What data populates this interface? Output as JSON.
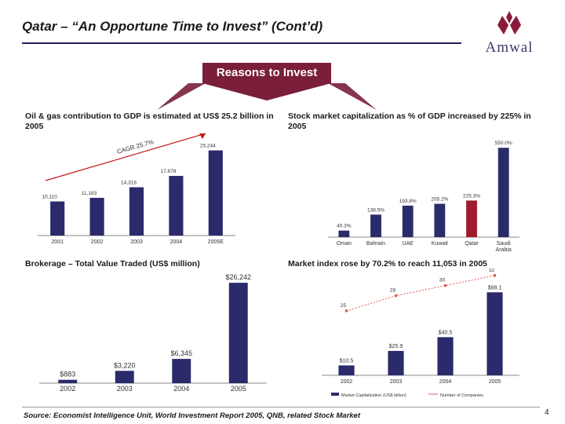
{
  "title": "Qatar – “An Opportune Time to Invest” (Cont’d)",
  "logo": {
    "text": "Amwal"
  },
  "banner": {
    "label": "Reasons to Invest"
  },
  "panels": {
    "gdp": {
      "label": "Oil & gas contribution to GDP is estimated at US$ 25.2 billion in 2005",
      "cagr": "CAGR 25.7%"
    },
    "mcap": {
      "label": "Stock market capitalization as % of GDP increased by 225% in 2005"
    },
    "brokerage": {
      "label": "Brokerage – Total Value Traded (US$ million)"
    },
    "index": {
      "label": "Market index rose by 70.2% to reach 11,053 in 2005"
    }
  },
  "source": "Source: Economist Intelligence Unit, World Investment Report 2005, QNB, related Stock Market",
  "page_number": "4",
  "colors": {
    "bar": "#2b2a6b",
    "highlight": "#9e1b2d",
    "banner": "#7a1e3a",
    "line": "#e05a5a"
  },
  "chart_data": [
    {
      "type": "bar",
      "categories": [
        "2001",
        "2002",
        "2003",
        "2004",
        "2005E"
      ],
      "values": [
        10110,
        11183,
        14318,
        17678,
        25244
      ],
      "labels": [
        "10,110",
        "11,183",
        "14,318",
        "17,678",
        "25,244"
      ],
      "ylim": [
        0,
        27000
      ]
    },
    {
      "type": "bar",
      "categories": [
        "Oman",
        "Bahrain",
        "UAE",
        "Kuwait",
        "Qatar",
        "Saudi Arabia"
      ],
      "values": [
        40.3,
        138.5,
        193.8,
        205.2,
        225.3,
        550.0
      ],
      "labels": [
        "40.3%",
        "138.5%",
        "193.8%",
        "205.2%",
        "225.3%",
        "550.0%"
      ],
      "highlight": "Qatar",
      "ylim": [
        0,
        580
      ]
    },
    {
      "type": "bar",
      "categories": [
        "2002",
        "2003",
        "2004",
        "2005"
      ],
      "values": [
        883,
        3220,
        6345,
        26242
      ],
      "labels": [
        "$883",
        "$3,220",
        "$6,345",
        "$26,242"
      ],
      "ylim": [
        0,
        27500
      ]
    },
    {
      "type": "bar+line",
      "categories": [
        "2002",
        "2003",
        "2004",
        "2005"
      ],
      "series": [
        {
          "name": "Market Capitalization (US$ billion)",
          "values": [
            10.5,
            25.9,
            40.5,
            88.1
          ],
          "labels": [
            "$10.5",
            "$25.9",
            "$40.5",
            "$88.1"
          ]
        },
        {
          "name": "Number of Companies",
          "values": [
            25,
            28,
            30,
            32
          ],
          "labels": [
            "25",
            "28",
            "30",
            "32"
          ]
        }
      ],
      "ylim_bar": [
        0,
        95
      ],
      "ylim_line": [
        20,
        34
      ]
    }
  ]
}
